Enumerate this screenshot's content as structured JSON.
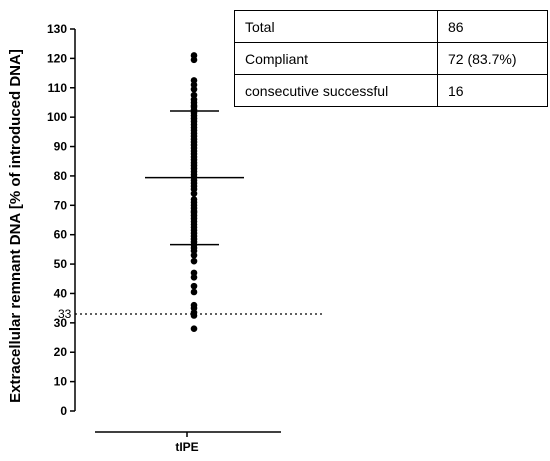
{
  "chart_data": {
    "type": "scatter",
    "ylabel": "Extracellular remnant DNA [% of introduced DNA]",
    "categories": [
      "tIPE"
    ],
    "yticks": [
      0,
      10,
      20,
      30,
      40,
      50,
      60,
      70,
      80,
      90,
      100,
      110,
      120,
      130
    ],
    "ylim": [
      0,
      130
    ],
    "mean": 79.4,
    "sd_upper": 102.1,
    "sd_lower": 56.6,
    "reference_line": {
      "value": 33,
      "label": "33",
      "style": "dotted"
    },
    "points": [
      121,
      119.5,
      112.5,
      111,
      109.5,
      107.5,
      106,
      105,
      104,
      103.5,
      102.5,
      101.5,
      100.5,
      99.5,
      98.5,
      97.5,
      96.5,
      95.5,
      94.5,
      93.5,
      92.5,
      91.5,
      90.5,
      89.5,
      88.5,
      87.5,
      86.5,
      85.5,
      84.5,
      83.5,
      82.5,
      81.5,
      80.5,
      79.5,
      78.5,
      77.5,
      76.5,
      75.5,
      74,
      72,
      71,
      70,
      69,
      68,
      67.5,
      66.5,
      65.5,
      64.5,
      63.5,
      62.5,
      61.5,
      60.5,
      59.5,
      58.5,
      57.5,
      56.5,
      55.5,
      54.5,
      53,
      51,
      47,
      45.5,
      42.5,
      40.5,
      36,
      35,
      33.5,
      32.5,
      28
    ],
    "grid": false,
    "legend": "none"
  },
  "table": {
    "rows": [
      {
        "label": "Total",
        "value": "86"
      },
      {
        "label": "Compliant",
        "value": "72 (83.7%)"
      },
      {
        "label": "consecutive successful",
        "value": "16"
      }
    ]
  }
}
